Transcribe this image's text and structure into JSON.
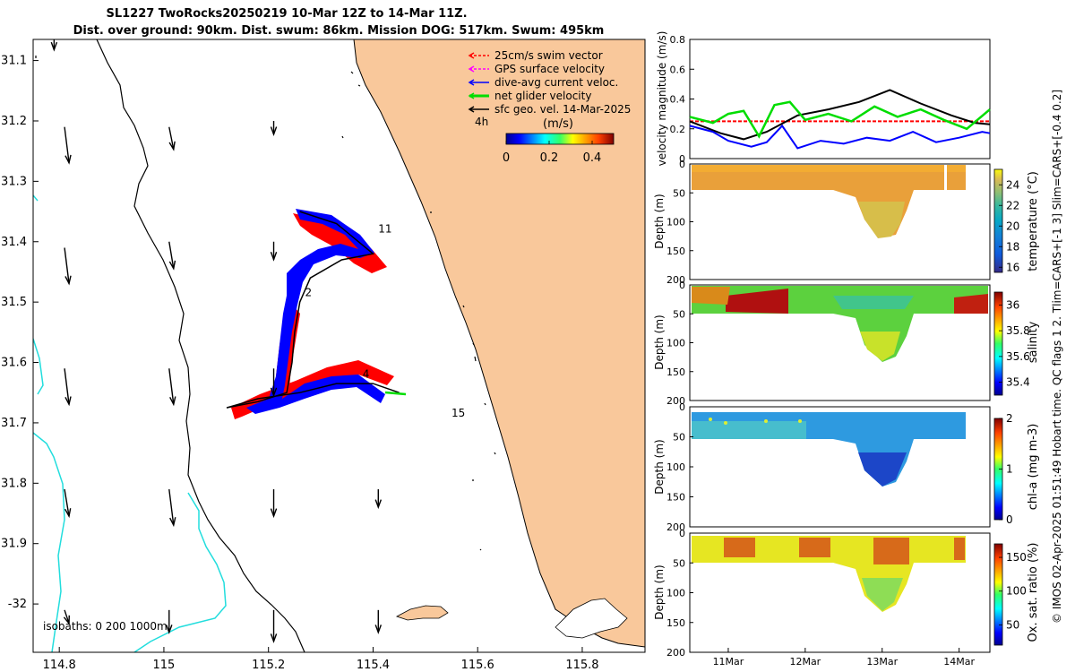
{
  "header": {
    "line1": "SL1227 TwoRocks20250219 10-Mar 12Z to 14-Mar 11Z.",
    "line2": "Dist. over ground: 90km. Dist. swum: 86km. Mission DOG: 517km. Swum: 495km"
  },
  "footer": {
    "credit": "© IMOS 02-Apr-2025 01:51:49 Hobart time. QC flags 1  2. Tlim=CARS+[-1 3] Slim=CARS+[-0.4 0.2]"
  },
  "colors": {
    "land": "#F9C89B",
    "sea": "#FFFFFF",
    "isobath": "#22DDDD",
    "track_swim": "#FF0000",
    "track_current": "#0000FF",
    "track_net": "#00DD00",
    "geo_vel": "#000000"
  },
  "chart_data": [
    {
      "id": "map",
      "type": "map",
      "xlim": [
        114.75,
        115.92
      ],
      "ylim": [
        31.065,
        32.08
      ],
      "x_ticks": [
        114.8,
        115,
        115.2,
        115.4,
        115.6,
        115.8
      ],
      "x_tick_labels": [
        "114.8",
        "115",
        "115.2",
        "115.4",
        "115.6",
        "115.8"
      ],
      "y_ticks": [
        31.1,
        31.2,
        31.3,
        31.4,
        31.5,
        31.6,
        31.7,
        31.8,
        31.9,
        32.0
      ],
      "y_tick_labels": [
        "31.1",
        "31.2",
        "31.3",
        "31.4",
        "31.5",
        "31.6",
        "31.7",
        "31.8",
        "31.9",
        "-32"
      ],
      "legend": {
        "placement": "top-right",
        "items": [
          "25cm/s swim vector",
          "GPS surface velocity",
          "dive-avg current veloc.",
          "net glider velocity",
          "sfc geo. vel. 14-Mar-2025"
        ],
        "item_colors": [
          "#FF0000",
          "#FF00FF",
          "#0000FF",
          "#00DD00",
          "#000000"
        ]
      },
      "colorbar": {
        "unit_label": "(m/s)",
        "ticks": [
          "0",
          "0.2",
          "0.4"
        ],
        "range": [
          0,
          0.5
        ]
      },
      "time_label": "4h",
      "isobaths_label": "isobaths: 0   200  1000m",
      "day_labels": [
        "11",
        "2",
        "4",
        "15"
      ],
      "day_label_positions": [
        [
          115.41,
          31.385
        ],
        [
          115.27,
          31.49
        ],
        [
          115.38,
          31.625
        ],
        [
          115.55,
          31.69
        ]
      ],
      "track": [
        [
          115.26,
          31.35
        ],
        [
          115.33,
          31.37
        ],
        [
          115.4,
          31.42
        ],
        [
          115.34,
          31.43
        ],
        [
          115.28,
          31.46
        ],
        [
          115.26,
          31.5
        ],
        [
          115.25,
          31.55
        ],
        [
          115.245,
          31.6
        ],
        [
          115.235,
          31.65
        ],
        [
          115.18,
          31.665
        ],
        [
          115.12,
          31.675
        ],
        [
          115.18,
          31.66
        ],
        [
          115.26,
          31.65
        ],
        [
          115.33,
          31.635
        ],
        [
          115.4,
          31.635
        ],
        [
          115.45,
          31.65
        ]
      ],
      "geo_vectors": [
        {
          "lon": 114.79,
          "lat": 31.06,
          "u": 0.0,
          "v": -0.03
        },
        {
          "lon": 114.81,
          "lat": 31.21,
          "u": 0.01,
          "v": -0.08
        },
        {
          "lon": 114.81,
          "lat": 31.41,
          "u": 0.01,
          "v": -0.08
        },
        {
          "lon": 114.81,
          "lat": 31.61,
          "u": 0.01,
          "v": -0.08
        },
        {
          "lon": 114.81,
          "lat": 31.81,
          "u": 0.01,
          "v": -0.06
        },
        {
          "lon": 114.81,
          "lat": 32.01,
          "u": 0.01,
          "v": -0.03
        },
        {
          "lon": 115.01,
          "lat": 31.21,
          "u": 0.01,
          "v": -0.05
        },
        {
          "lon": 115.01,
          "lat": 31.4,
          "u": 0.01,
          "v": -0.06
        },
        {
          "lon": 115.01,
          "lat": 31.61,
          "u": 0.01,
          "v": -0.08
        },
        {
          "lon": 115.01,
          "lat": 31.81,
          "u": 0.01,
          "v": -0.08
        },
        {
          "lon": 115.01,
          "lat": 32.01,
          "u": 0.0,
          "v": -0.05
        },
        {
          "lon": 115.21,
          "lat": 31.2,
          "u": 0.0,
          "v": -0.03
        },
        {
          "lon": 115.21,
          "lat": 31.4,
          "u": 0.0,
          "v": -0.04
        },
        {
          "lon": 115.21,
          "lat": 31.61,
          "u": 0.0,
          "v": -0.06
        },
        {
          "lon": 115.21,
          "lat": 31.81,
          "u": 0.0,
          "v": -0.06
        },
        {
          "lon": 115.21,
          "lat": 32.01,
          "u": 0.0,
          "v": -0.07
        },
        {
          "lon": 115.41,
          "lat": 31.81,
          "u": 0.0,
          "v": -0.04
        },
        {
          "lon": 115.41,
          "lat": 32.01,
          "u": 0.0,
          "v": -0.05
        }
      ]
    },
    {
      "id": "velocity",
      "type": "line",
      "ylabel": "velocity magnitude (m/s)",
      "ylim": [
        0,
        0.8
      ],
      "y_ticks": [
        0,
        0.2,
        0.4,
        0.6,
        0.8
      ],
      "y_tick_labels": [
        "0",
        "0.2",
        "0.4",
        "0.6",
        "0.8"
      ],
      "xlim": [
        10.5,
        14.4
      ],
      "series": [
        {
          "name": "25cm/s swim vector",
          "color": "#FF0000",
          "x": [
            10.5,
            14.4
          ],
          "y": [
            0.25,
            0.25
          ]
        },
        {
          "name": "sfc geo. vel. 14-Mar-2025",
          "color": "#000000",
          "x": [
            10.5,
            10.9,
            11.2,
            11.5,
            11.9,
            12.3,
            12.7,
            13.1,
            13.5,
            13.9,
            14.2,
            14.4
          ],
          "y": [
            0.25,
            0.17,
            0.13,
            0.18,
            0.29,
            0.33,
            0.38,
            0.46,
            0.37,
            0.29,
            0.24,
            0.23
          ]
        },
        {
          "name": "dive-avg current veloc.",
          "color": "#0000FF",
          "x": [
            10.5,
            10.8,
            11.0,
            11.3,
            11.5,
            11.7,
            11.9,
            12.2,
            12.5,
            12.8,
            13.1,
            13.4,
            13.7,
            14.0,
            14.3,
            14.4
          ],
          "y": [
            0.22,
            0.18,
            0.12,
            0.08,
            0.11,
            0.22,
            0.07,
            0.12,
            0.1,
            0.14,
            0.12,
            0.18,
            0.11,
            0.14,
            0.18,
            0.17
          ]
        },
        {
          "name": "net glider velocity",
          "color": "#00DD00",
          "x": [
            10.5,
            10.8,
            11.0,
            11.2,
            11.4,
            11.6,
            11.8,
            12.0,
            12.3,
            12.6,
            12.9,
            13.2,
            13.5,
            13.8,
            14.1,
            14.4
          ],
          "y": [
            0.28,
            0.24,
            0.3,
            0.32,
            0.15,
            0.36,
            0.38,
            0.26,
            0.3,
            0.25,
            0.35,
            0.28,
            0.33,
            0.26,
            0.2,
            0.33
          ]
        }
      ]
    },
    {
      "id": "temperature",
      "type": "heatmap",
      "ylabel": "Depth (m)",
      "ylim": [
        0,
        200
      ],
      "y_ticks": [
        0,
        50,
        100,
        150,
        200
      ],
      "colorbar_label": "temperature (°C)",
      "colorbar_ticks": [
        16,
        18,
        20,
        22,
        24
      ],
      "colorbar_range": [
        15.5,
        25.5
      ],
      "colormap": "parula"
    },
    {
      "id": "salinity",
      "type": "heatmap",
      "ylabel": "Depth (m)",
      "ylim": [
        0,
        200
      ],
      "y_ticks": [
        0,
        50,
        100,
        150,
        200
      ],
      "colorbar_label": "salinity",
      "colorbar_ticks": [
        35.4,
        35.6,
        35.8,
        36
      ],
      "colorbar_range": [
        35.3,
        36.1
      ],
      "colormap": "jet"
    },
    {
      "id": "chla",
      "type": "heatmap",
      "ylabel": "Depth (m)",
      "ylim": [
        0,
        200
      ],
      "y_ticks": [
        0,
        50,
        100,
        150,
        200
      ],
      "colorbar_label": "chl-a (mg m-3)",
      "colorbar_ticks": [
        0,
        1,
        2
      ],
      "colorbar_range": [
        0,
        2
      ],
      "colormap": "jet"
    },
    {
      "id": "oxygen",
      "type": "heatmap",
      "ylabel": "Depth (m)",
      "ylim": [
        0,
        200
      ],
      "y_ticks": [
        0,
        50,
        100,
        150,
        200
      ],
      "colorbar_label": "Ox. sat. ratio (%)",
      "colorbar_ticks": [
        50,
        100,
        150
      ],
      "colorbar_range": [
        20,
        170
      ],
      "colormap": "jet",
      "xlim": [
        10.5,
        14.4
      ],
      "x_ticks": [
        11,
        12,
        13,
        14
      ],
      "x_tick_labels": [
        "11Mar",
        "12Mar",
        "13Mar",
        "14Mar"
      ]
    }
  ]
}
